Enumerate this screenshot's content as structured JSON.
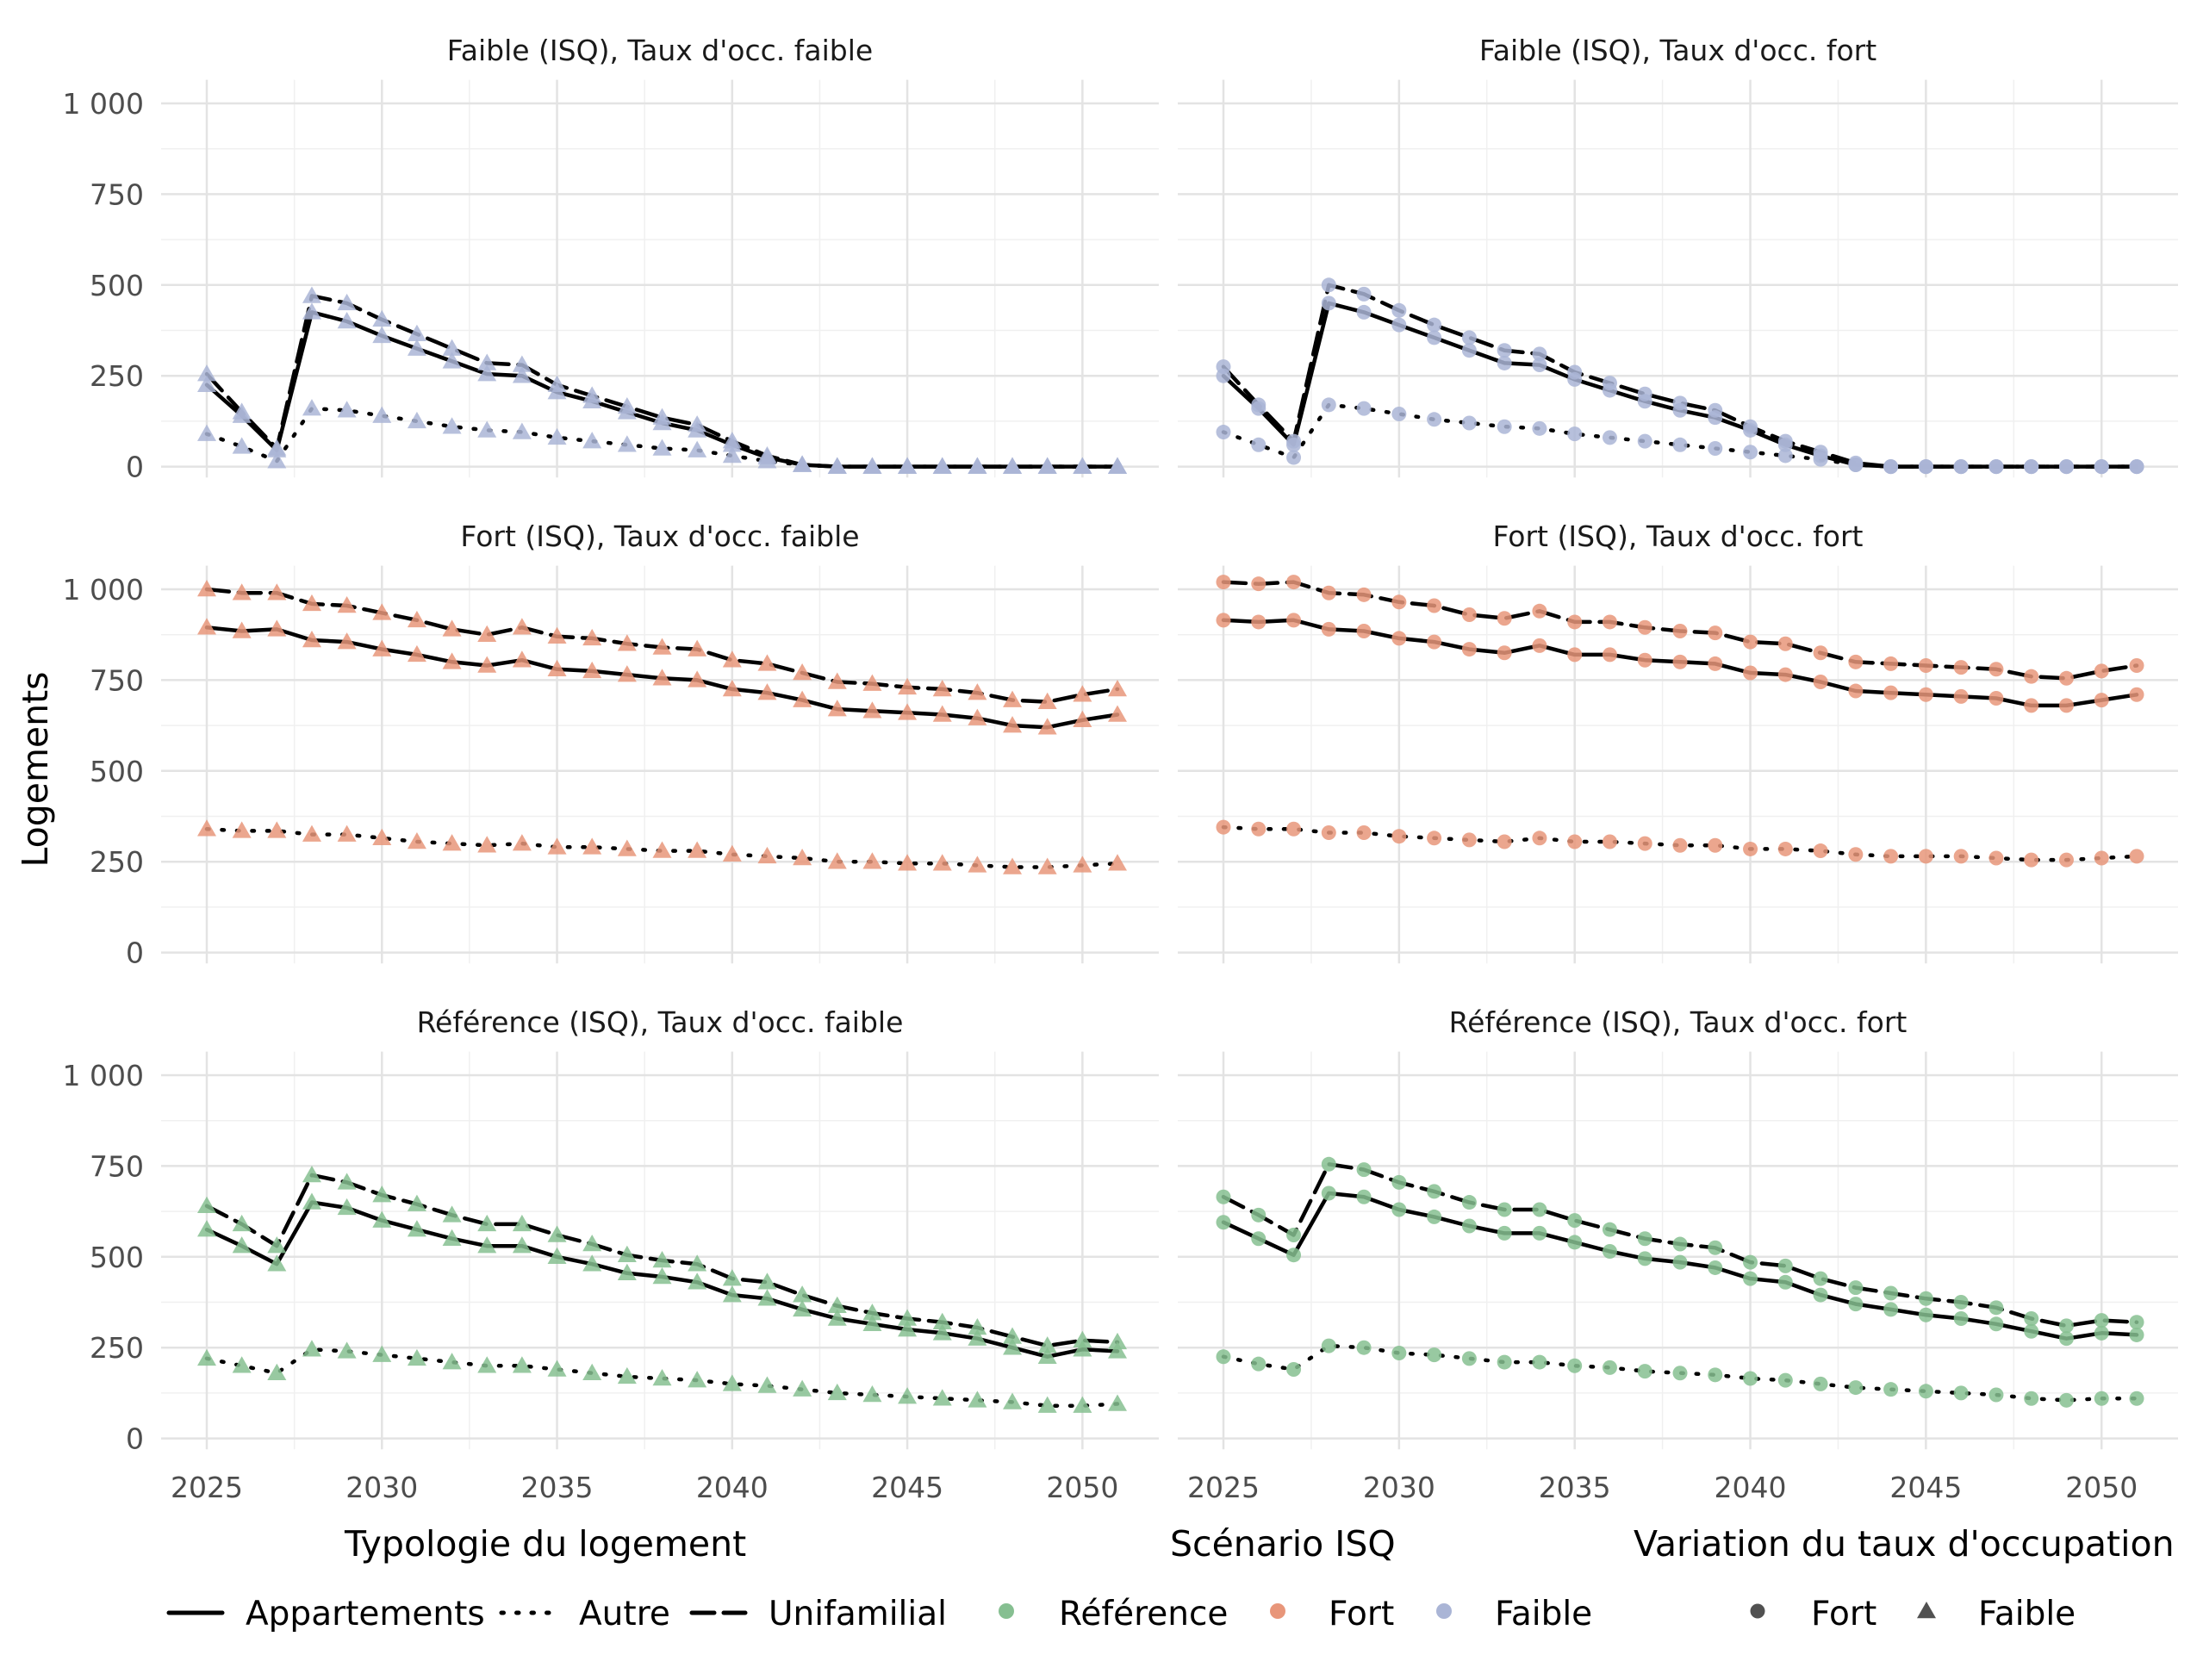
{
  "chart_data": {
    "type": "line",
    "ylabel": "Logements",
    "xlim": [
      2025,
      2051
    ],
    "ylim": [
      0,
      1000
    ],
    "x_ticks": [
      2025,
      2030,
      2035,
      2040,
      2045,
      2050
    ],
    "y_ticks": [
      0,
      250,
      500,
      750,
      1000
    ],
    "y_tick_labels": [
      "0",
      "250",
      "500",
      "750",
      "1 000"
    ],
    "grid": true,
    "legend_position": "bottom",
    "legend": {
      "typologie": {
        "title": "Typologie du logement",
        "entries": [
          {
            "label": "Appartements",
            "linetype": "solid"
          },
          {
            "label": "Autre",
            "linetype": "dotted"
          },
          {
            "label": "Unifamilial",
            "linetype": "dashed"
          }
        ]
      },
      "scenario": {
        "title": "Scénario ISQ",
        "entries": [
          {
            "label": "Référence",
            "color": "#86bf91"
          },
          {
            "label": "Fort",
            "color": "#e8967a"
          },
          {
            "label": "Faible",
            "color": "#aab5d6"
          }
        ]
      },
      "taux": {
        "title": "Variation du taux d'occupation",
        "entries": [
          {
            "label": "Fort",
            "shape": "circle"
          },
          {
            "label": "Faible",
            "shape": "triangle"
          }
        ]
      }
    },
    "x": [
      2025,
      2026,
      2027,
      2028,
      2029,
      2030,
      2031,
      2032,
      2033,
      2034,
      2035,
      2036,
      2037,
      2038,
      2039,
      2040,
      2041,
      2042,
      2043,
      2044,
      2045,
      2046,
      2047,
      2048,
      2049,
      2050,
      2051
    ],
    "panels": [
      {
        "title": "Faible (ISQ), Taux d'occ. faible",
        "scenario": "Faible",
        "taux": "Faible",
        "series": [
          {
            "name": "Appartements",
            "values": [
              225,
              140,
              45,
              425,
              400,
              360,
              325,
              290,
              255,
              250,
              205,
              180,
              150,
              120,
              100,
              60,
              25,
              5,
              0,
              0,
              0,
              0,
              0,
              0,
              0,
              0,
              0
            ]
          },
          {
            "name": "Autre",
            "values": [
              90,
              55,
              15,
              160,
              155,
              140,
              125,
              110,
              100,
              95,
              80,
              70,
              60,
              50,
              45,
              30,
              15,
              5,
              0,
              0,
              0,
              0,
              0,
              0,
              0,
              0,
              0
            ]
          },
          {
            "name": "Unifamilial",
            "values": [
              255,
              150,
              50,
              470,
              450,
              405,
              365,
              325,
              285,
              280,
              225,
              195,
              165,
              135,
              115,
              70,
              30,
              5,
              0,
              0,
              0,
              0,
              0,
              0,
              0,
              0,
              0
            ]
          }
        ]
      },
      {
        "title": "Faible (ISQ), Taux d'occ. fort",
        "scenario": "Faible",
        "taux": "Fort",
        "series": [
          {
            "name": "Appartements",
            "values": [
              250,
              160,
              60,
              450,
              425,
              390,
              355,
              320,
              285,
              280,
              240,
              210,
              180,
              155,
              135,
              100,
              60,
              30,
              5,
              0,
              0,
              0,
              0,
              0,
              0,
              0,
              0
            ]
          },
          {
            "name": "Autre",
            "values": [
              95,
              60,
              25,
              170,
              160,
              145,
              130,
              120,
              110,
              105,
              90,
              80,
              70,
              60,
              50,
              40,
              30,
              20,
              5,
              0,
              0,
              0,
              0,
              0,
              0,
              0,
              0
            ]
          },
          {
            "name": "Unifamilial",
            "values": [
              275,
              170,
              70,
              500,
              475,
              430,
              390,
              355,
              320,
              310,
              260,
              230,
              200,
              175,
              155,
              110,
              70,
              40,
              10,
              0,
              0,
              0,
              0,
              0,
              0,
              0,
              0
            ]
          }
        ]
      },
      {
        "title": "Fort (ISQ), Taux d'occ. faible",
        "scenario": "Fort",
        "taux": "Faible",
        "series": [
          {
            "name": "Appartements",
            "values": [
              895,
              885,
              890,
              860,
              855,
              835,
              820,
              800,
              790,
              805,
              780,
              775,
              765,
              755,
              750,
              725,
              715,
              695,
              670,
              665,
              660,
              655,
              645,
              625,
              620,
              640,
              655
            ]
          },
          {
            "name": "Autre",
            "values": [
              340,
              335,
              335,
              325,
              325,
              315,
              305,
              300,
              295,
              300,
              290,
              290,
              285,
              280,
              280,
              270,
              265,
              260,
              250,
              250,
              245,
              245,
              240,
              235,
              235,
              240,
              245
            ]
          },
          {
            "name": "Unifamilial",
            "values": [
              1000,
              990,
              990,
              960,
              955,
              935,
              915,
              890,
              875,
              895,
              870,
              865,
              850,
              840,
              835,
              805,
              795,
              770,
              745,
              740,
              730,
              725,
              715,
              695,
              690,
              710,
              725
            ]
          }
        ]
      },
      {
        "title": "Fort (ISQ), Taux d'occ. fort",
        "scenario": "Fort",
        "taux": "Fort",
        "series": [
          {
            "name": "Appartements",
            "values": [
              915,
              910,
              915,
              890,
              885,
              865,
              855,
              835,
              825,
              845,
              820,
              820,
              805,
              800,
              795,
              770,
              765,
              745,
              720,
              715,
              710,
              705,
              700,
              680,
              680,
              695,
              710
            ]
          },
          {
            "name": "Autre",
            "values": [
              345,
              340,
              340,
              330,
              330,
              320,
              315,
              310,
              305,
              315,
              305,
              305,
              300,
              295,
              295,
              285,
              285,
              280,
              270,
              265,
              265,
              265,
              260,
              255,
              255,
              260,
              265
            ]
          },
          {
            "name": "Unifamilial",
            "values": [
              1020,
              1015,
              1020,
              990,
              985,
              965,
              955,
              930,
              920,
              940,
              910,
              910,
              895,
              885,
              880,
              855,
              850,
              825,
              800,
              795,
              790,
              785,
              780,
              760,
              755,
              775,
              790
            ]
          }
        ]
      },
      {
        "title": "Référence (ISQ), Taux d'occ. faible",
        "scenario": "Référence",
        "taux": "Faible",
        "series": [
          {
            "name": "Appartements",
            "values": [
              575,
              530,
              480,
              650,
              635,
              600,
              575,
              550,
              530,
              530,
              500,
              480,
              455,
              445,
              430,
              395,
              385,
              355,
              330,
              315,
              300,
              290,
              275,
              250,
              225,
              245,
              240
            ]
          },
          {
            "name": "Autre",
            "values": [
              220,
              200,
              180,
              245,
              240,
              230,
              220,
              210,
              200,
              200,
              190,
              180,
              170,
              165,
              160,
              150,
              145,
              135,
              125,
              120,
              115,
              110,
              105,
              100,
              90,
              90,
              95
            ]
          },
          {
            "name": "Unifamilial",
            "values": [
              640,
              590,
              530,
              725,
              705,
              670,
              645,
              615,
              590,
              590,
              560,
              535,
              505,
              490,
              480,
              440,
              430,
              395,
              365,
              345,
              330,
              320,
              305,
              280,
              255,
              270,
              265
            ]
          }
        ]
      },
      {
        "title": "Référence (ISQ), Taux d'occ. fort",
        "scenario": "Référence",
        "taux": "Fort",
        "series": [
          {
            "name": "Appartements",
            "values": [
              595,
              550,
              505,
              675,
              665,
              630,
              610,
              585,
              565,
              565,
              540,
              515,
              495,
              485,
              470,
              440,
              430,
              395,
              370,
              355,
              340,
              330,
              315,
              295,
              275,
              290,
              285
            ]
          },
          {
            "name": "Autre",
            "values": [
              225,
              205,
              190,
              255,
              250,
              235,
              230,
              220,
              210,
              210,
              200,
              195,
              185,
              180,
              175,
              165,
              160,
              150,
              140,
              135,
              130,
              125,
              120,
              110,
              105,
              110,
              110
            ]
          },
          {
            "name": "Unifamilial",
            "values": [
              665,
              615,
              560,
              755,
              740,
              705,
              680,
              650,
              630,
              630,
              600,
              575,
              550,
              535,
              525,
              485,
              475,
              440,
              415,
              400,
              385,
              375,
              360,
              330,
              310,
              325,
              320
            ]
          }
        ]
      }
    ]
  }
}
